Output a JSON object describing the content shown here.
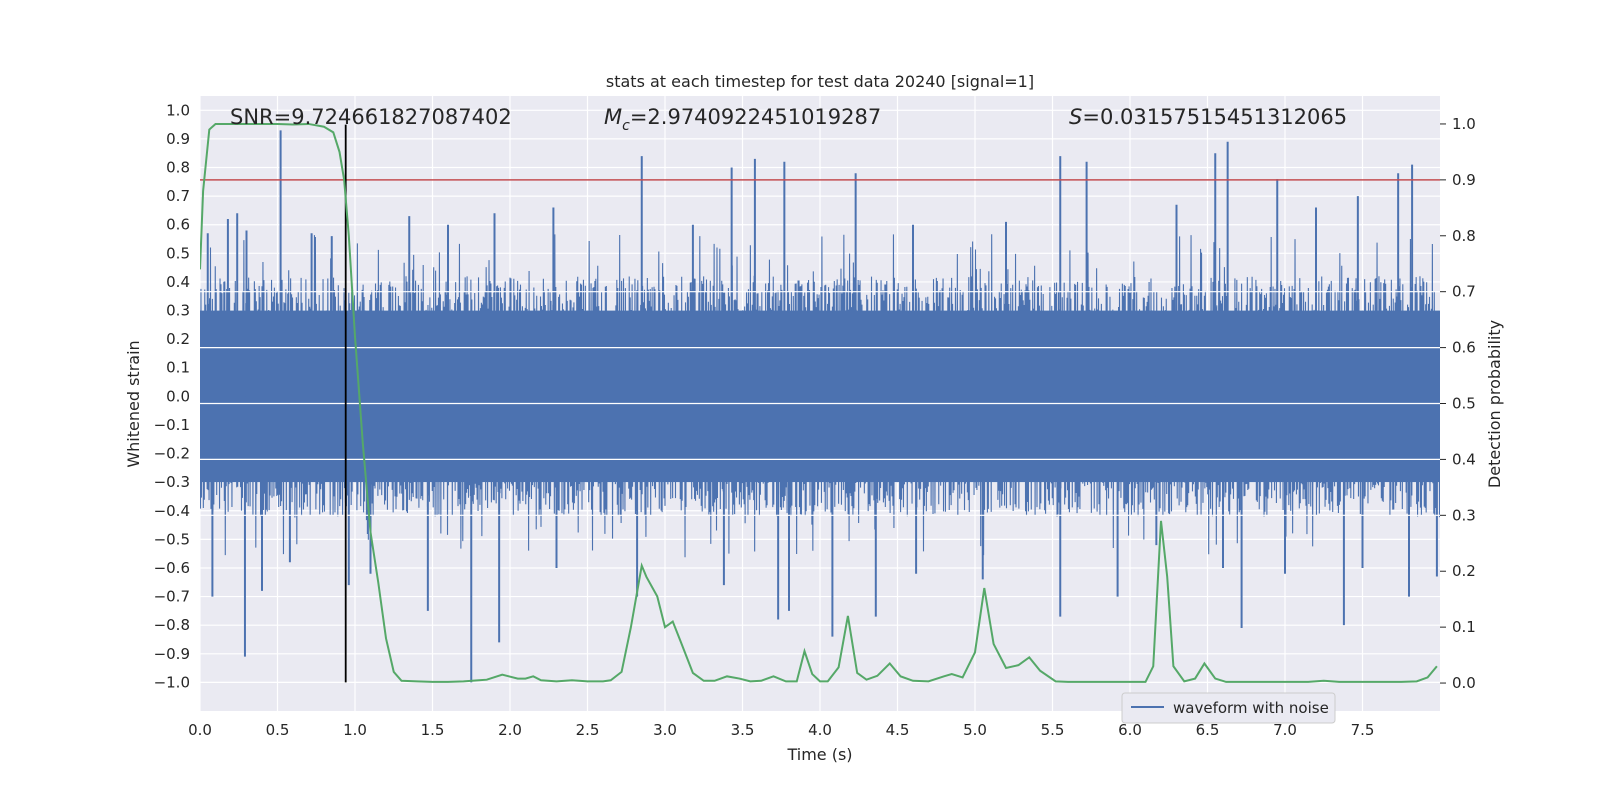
{
  "chart_data": {
    "type": "line",
    "title": "stats at each timestep for test data 20240 [signal=1]",
    "xlabel": "Time (s)",
    "ylabel": "Whitened strain",
    "y2label": "Detection probability",
    "xlim": [
      0.0,
      8.0
    ],
    "ylim": [
      -1.1,
      1.05
    ],
    "y2lim": [
      -0.05,
      1.05
    ],
    "xticks": [
      "0.0",
      "0.5",
      "1.0",
      "1.5",
      "2.0",
      "2.5",
      "3.0",
      "3.5",
      "4.0",
      "4.5",
      "5.0",
      "5.5",
      "6.0",
      "6.5",
      "7.0",
      "7.5"
    ],
    "yticks": [
      "1.0",
      "0.9",
      "0.8",
      "0.7",
      "0.6",
      "0.5",
      "0.4",
      "0.3",
      "0.2",
      "0.1",
      "0.0",
      "-0.1",
      "-0.2",
      "-0.3",
      "-0.4",
      "-0.5",
      "-0.6",
      "-0.7",
      "-0.8",
      "-0.9",
      "-1.0"
    ],
    "y2ticks": [
      "1.0",
      "0.9",
      "0.8",
      "0.7",
      "0.6",
      "0.5",
      "0.4",
      "0.3",
      "0.2",
      "0.1",
      "0.0"
    ],
    "annotations": {
      "snr": "SNR=9.724661827087402",
      "mc_symbol": "M",
      "mc_sub": "c",
      "mc_value": "=2.9740922451019287",
      "s_symbol": "S",
      "s_value": "=0.031575154513120​65"
    },
    "threshold": {
      "value": 0.9,
      "axis": "right",
      "color": "#c44e52"
    },
    "marker_line": {
      "x": 0.94,
      "y_from": -1.0,
      "y_to": 0.95,
      "color": "#000000"
    },
    "legend": {
      "label": "waveform with noise",
      "placement": "lower-right"
    },
    "series": [
      {
        "name": "waveform with noise",
        "axis": "left",
        "color": "#4c72b0",
        "envelope": {
          "typical_low": -0.42,
          "typical_high": 0.42
        },
        "spikes": [
          {
            "x": 0.05,
            "y": 0.57
          },
          {
            "x": 0.18,
            "y": 0.62
          },
          {
            "x": 0.24,
            "y": 0.64
          },
          {
            "x": 0.3,
            "y": 0.58
          },
          {
            "x": 0.52,
            "y": 0.93
          },
          {
            "x": 0.72,
            "y": 0.57
          },
          {
            "x": 0.85,
            "y": 0.56
          },
          {
            "x": 1.35,
            "y": 0.63
          },
          {
            "x": 1.6,
            "y": 0.6
          },
          {
            "x": 1.9,
            "y": 0.64
          },
          {
            "x": 2.28,
            "y": 0.66
          },
          {
            "x": 2.85,
            "y": 0.84
          },
          {
            "x": 3.18,
            "y": 0.6
          },
          {
            "x": 3.43,
            "y": 0.8
          },
          {
            "x": 3.58,
            "y": 0.83
          },
          {
            "x": 3.77,
            "y": 0.82
          },
          {
            "x": 4.23,
            "y": 0.78
          },
          {
            "x": 4.6,
            "y": 0.6
          },
          {
            "x": 5.2,
            "y": 0.61
          },
          {
            "x": 5.55,
            "y": 0.84
          },
          {
            "x": 5.72,
            "y": 0.82
          },
          {
            "x": 6.3,
            "y": 0.67
          },
          {
            "x": 6.55,
            "y": 0.85
          },
          {
            "x": 6.63,
            "y": 0.89
          },
          {
            "x": 6.95,
            "y": 0.76
          },
          {
            "x": 7.2,
            "y": 0.66
          },
          {
            "x": 7.47,
            "y": 0.7
          },
          {
            "x": 7.73,
            "y": 0.78
          },
          {
            "x": 7.82,
            "y": 0.81
          },
          {
            "x": 0.08,
            "y": -0.7
          },
          {
            "x": 0.29,
            "y": -0.91
          },
          {
            "x": 0.4,
            "y": -0.68
          },
          {
            "x": 0.58,
            "y": -0.58
          },
          {
            "x": 0.96,
            "y": -0.66
          },
          {
            "x": 1.1,
            "y": -0.62
          },
          {
            "x": 1.47,
            "y": -0.75
          },
          {
            "x": 1.75,
            "y": -1.0
          },
          {
            "x": 1.93,
            "y": -0.86
          },
          {
            "x": 2.3,
            "y": -0.6
          },
          {
            "x": 2.82,
            "y": -0.7
          },
          {
            "x": 3.38,
            "y": -0.66
          },
          {
            "x": 3.73,
            "y": -0.78
          },
          {
            "x": 3.8,
            "y": -0.75
          },
          {
            "x": 4.08,
            "y": -0.84
          },
          {
            "x": 4.36,
            "y": -0.77
          },
          {
            "x": 4.62,
            "y": -0.62
          },
          {
            "x": 5.05,
            "y": -0.64
          },
          {
            "x": 5.55,
            "y": -0.77
          },
          {
            "x": 5.92,
            "y": -0.7
          },
          {
            "x": 6.17,
            "y": -0.52
          },
          {
            "x": 6.6,
            "y": -0.6
          },
          {
            "x": 6.72,
            "y": -0.81
          },
          {
            "x": 7.0,
            "y": -0.62
          },
          {
            "x": 7.38,
            "y": -0.8
          },
          {
            "x": 7.5,
            "y": -0.6
          },
          {
            "x": 7.8,
            "y": -0.7
          },
          {
            "x": 7.98,
            "y": -0.63
          }
        ]
      },
      {
        "name": "detection probability",
        "axis": "right",
        "color": "#55a868",
        "x": [
          0.0,
          0.02,
          0.06,
          0.1,
          0.2,
          0.3,
          0.4,
          0.5,
          0.6,
          0.7,
          0.8,
          0.86,
          0.9,
          0.93,
          0.96,
          1.0,
          1.05,
          1.1,
          1.15,
          1.2,
          1.25,
          1.3,
          1.4,
          1.5,
          1.6,
          1.7,
          1.8,
          1.85,
          1.95,
          2.05,
          2.1,
          2.15,
          2.2,
          2.3,
          2.4,
          2.5,
          2.6,
          2.65,
          2.72,
          2.78,
          2.85,
          2.88,
          2.95,
          3.0,
          3.05,
          3.1,
          3.18,
          3.25,
          3.32,
          3.4,
          3.48,
          3.55,
          3.62,
          3.7,
          3.78,
          3.85,
          3.9,
          3.95,
          4.0,
          4.05,
          4.12,
          4.18,
          4.24,
          4.3,
          4.37,
          4.45,
          4.52,
          4.6,
          4.7,
          4.8,
          4.85,
          4.92,
          5.0,
          5.06,
          5.12,
          5.2,
          5.28,
          5.35,
          5.42,
          5.52,
          5.6,
          5.7,
          5.8,
          5.9,
          6.0,
          6.1,
          6.15,
          6.2,
          6.24,
          6.28,
          6.35,
          6.42,
          6.48,
          6.55,
          6.62,
          6.72,
          6.85,
          6.95,
          7.05,
          7.15,
          7.25,
          7.35,
          7.45,
          7.55,
          7.65,
          7.75,
          7.85,
          7.92,
          7.98
        ],
        "values": [
          0.74,
          0.88,
          0.99,
          1.0,
          1.0,
          1.0,
          1.0,
          1.0,
          0.999,
          1.0,
          0.995,
          0.985,
          0.95,
          0.9,
          0.8,
          0.62,
          0.43,
          0.27,
          0.18,
          0.08,
          0.02,
          0.004,
          0.003,
          0.002,
          0.002,
          0.003,
          0.005,
          0.006,
          0.015,
          0.008,
          0.008,
          0.012,
          0.005,
          0.003,
          0.005,
          0.003,
          0.003,
          0.005,
          0.02,
          0.1,
          0.21,
          0.19,
          0.155,
          0.1,
          0.11,
          0.075,
          0.018,
          0.004,
          0.004,
          0.012,
          0.008,
          0.003,
          0.004,
          0.012,
          0.003,
          0.003,
          0.057,
          0.016,
          0.003,
          0.003,
          0.028,
          0.12,
          0.018,
          0.006,
          0.013,
          0.035,
          0.012,
          0.004,
          0.003,
          0.012,
          0.016,
          0.01,
          0.055,
          0.17,
          0.07,
          0.027,
          0.032,
          0.046,
          0.022,
          0.003,
          0.002,
          0.002,
          0.002,
          0.002,
          0.002,
          0.002,
          0.03,
          0.29,
          0.19,
          0.03,
          0.003,
          0.008,
          0.035,
          0.008,
          0.002,
          0.002,
          0.002,
          0.002,
          0.002,
          0.002,
          0.004,
          0.002,
          0.002,
          0.002,
          0.002,
          0.002,
          0.003,
          0.01,
          0.03
        ]
      }
    ]
  }
}
